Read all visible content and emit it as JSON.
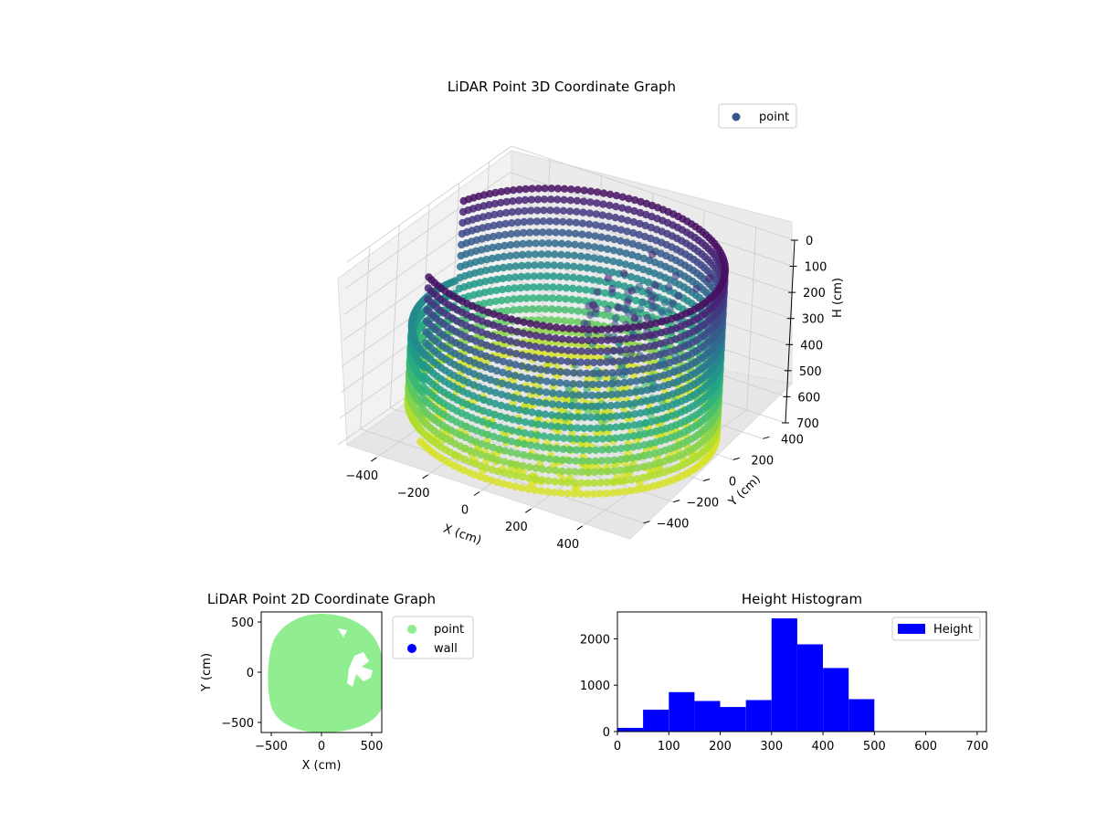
{
  "chart_data": [
    {
      "type": "scatter",
      "projection": "3d",
      "title": "LiDAR Point 3D Coordinate Graph",
      "xlabel": "X (cm)",
      "ylabel": "Y (cm)",
      "zlabel": "H (cm)",
      "xticks": [
        "−400",
        "−200",
        "0",
        "200",
        "400"
      ],
      "yticks": [
        "−400",
        "−200",
        "0",
        "200",
        "400"
      ],
      "zticks": [
        "0",
        "100",
        "200",
        "300",
        "400",
        "500",
        "600",
        "700"
      ],
      "xlim": [
        -550,
        550
      ],
      "ylim": [
        -550,
        550
      ],
      "zlim": [
        0,
        700
      ],
      "z_inverted": true,
      "colormap": "viridis",
      "legend": {
        "position": "top-right",
        "entries": [
          {
            "label": "point",
            "color": "#3b528b"
          }
        ]
      },
      "grid": true
    },
    {
      "type": "scatter",
      "title": "LiDAR Point 2D Coordinate Graph",
      "xlabel": "X (cm)",
      "ylabel": "Y (cm)",
      "xticks": [
        "−500",
        "0",
        "500"
      ],
      "yticks": [
        "−500",
        "0",
        "500"
      ],
      "xlim": [
        -600,
        600
      ],
      "ylim": [
        -600,
        600
      ],
      "series": [
        {
          "name": "point",
          "color": "#90ee90"
        },
        {
          "name": "wall",
          "color": "#0000ff"
        }
      ],
      "legend": {
        "position": "outside-right"
      }
    },
    {
      "type": "bar",
      "title": "Height Histogram",
      "bin_edges": [
        0,
        50,
        100,
        150,
        200,
        250,
        300,
        350,
        400,
        450,
        500,
        550,
        600,
        650,
        700
      ],
      "values": [
        80,
        470,
        850,
        660,
        530,
        680,
        2440,
        1880,
        1370,
        700,
        0,
        0,
        0,
        0
      ],
      "xticks": [
        "0",
        "100",
        "200",
        "300",
        "400",
        "500",
        "600",
        "700"
      ],
      "yticks": [
        "0",
        "1000",
        "2000"
      ],
      "xlim": [
        0,
        718
      ],
      "ylim": [
        0,
        2580
      ],
      "color": "#0000ff",
      "legend": {
        "position": "top-right",
        "entries": [
          {
            "label": "Height",
            "color": "#0000ff"
          }
        ]
      }
    }
  ]
}
